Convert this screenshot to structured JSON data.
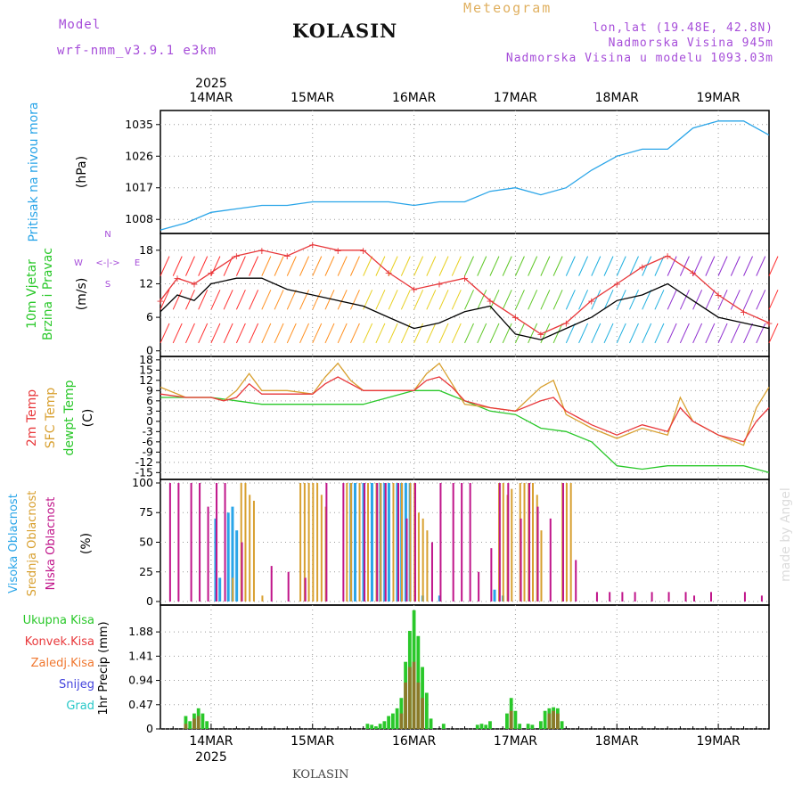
{
  "header": {
    "model_label": "Model",
    "model_name": "wrf-nmm_v3.9.1 e3km",
    "station": "KOLASIN",
    "product": "Meteogram",
    "coords": "lon,lat (19.48E, 42.8N)",
    "elevation": "Nadmorska Visina 945m",
    "model_elevation": "Nadmorska Visina u modelu 1093.03m",
    "footer_station": "KOLASIN",
    "credit": "made by Angel"
  },
  "colors": {
    "pressure": "#2aa5e8",
    "wind_speed": "#000000",
    "gust": "#e8383b",
    "temp2m": "#e8383b",
    "sfc": "#d8a030",
    "dewpoint": "#2ac82a",
    "high_cloud": "#2aa5e8",
    "mid_cloud": "#d8a030",
    "low_cloud": "#c0158a",
    "total_precip": "#2ac82a",
    "conv_precip": "#e8383b",
    "freezing": "#f07830",
    "snow": "#4444dd",
    "hail": "#28c8c8",
    "axis_label_purple": "#a64dd9"
  },
  "chart_data": {
    "type": "meteogram",
    "time_axis": {
      "year": "2025",
      "start_hour": -12,
      "end_hour": 132,
      "date_labels": [
        "14MAR",
        "15MAR",
        "16MAR",
        "17MAR",
        "18MAR",
        "19MAR"
      ],
      "date_hours": [
        0,
        24,
        48,
        72,
        96,
        120
      ]
    },
    "panels": [
      {
        "id": "pressure",
        "title": "Pritisak na nivou mora",
        "unit": "(hPa)",
        "ylim": [
          1004,
          1039
        ],
        "yticks": [
          "1035",
          "1026",
          "1017",
          "1008"
        ],
        "ytick_values": [
          1035,
          1026,
          1017,
          1008
        ],
        "series": [
          {
            "name": "Pritisak",
            "x": [
              -12,
              -6,
              0,
              6,
              12,
              18,
              24,
              30,
              36,
              42,
              48,
              54,
              60,
              66,
              72,
              78,
              84,
              90,
              96,
              102,
              108,
              114,
              120,
              126,
              132
            ],
            "y": [
              1005,
              1007,
              1010,
              1011,
              1012,
              1012,
              1013,
              1013,
              1013,
              1013,
              1012,
              1013,
              1013,
              1016,
              1017,
              1015,
              1017,
              1022,
              1026,
              1028,
              1028,
              1034,
              1036,
              1036,
              1032
            ]
          }
        ]
      },
      {
        "id": "wind",
        "title": "10m Vjetar",
        "title2": "Brzina i Pravac",
        "unit": "(m/s)",
        "compass": [
          "N",
          "E",
          "S",
          "W"
        ],
        "ylim": [
          -1,
          21
        ],
        "yticks": [
          "18",
          "12",
          "6",
          "0"
        ],
        "ytick_values": [
          18,
          12,
          6,
          0
        ],
        "series": [
          {
            "name": "Brzina",
            "x": [
              -12,
              -8,
              -4,
              0,
              6,
              12,
              18,
              24,
              30,
              36,
              42,
              48,
              54,
              60,
              66,
              72,
              78,
              84,
              90,
              96,
              102,
              108,
              114,
              120,
              126,
              132
            ],
            "y": [
              7,
              10,
              9,
              12,
              13,
              13,
              11,
              10,
              9,
              8,
              6,
              4,
              5,
              7,
              8,
              3,
              2,
              4,
              6,
              9,
              10,
              12,
              9,
              6,
              5,
              4
            ]
          },
          {
            "name": "Udari",
            "x": [
              -12,
              -8,
              -4,
              0,
              6,
              12,
              18,
              24,
              30,
              36,
              42,
              48,
              54,
              60,
              66,
              72,
              78,
              84,
              90,
              96,
              102,
              108,
              114,
              120,
              126,
              132
            ],
            "y": [
              9,
              13,
              12,
              14,
              17,
              18,
              17,
              19,
              18,
              18,
              14,
              11,
              12,
              13,
              9,
              6,
              3,
              5,
              9,
              12,
              15,
              17,
              14,
              10,
              7,
              5
            ]
          }
        ]
      },
      {
        "id": "temperature",
        "title": "2m Temp",
        "title2": "SFC Temp",
        "title3": "dewpt Temp",
        "unit": "(C)",
        "ylim": [
          -17,
          19
        ],
        "yticks": [
          "18",
          "15",
          "12",
          "9",
          "6",
          "3",
          "0",
          "-3",
          "-6",
          "-9",
          "-12",
          "-15"
        ],
        "ytick_values": [
          18,
          15,
          12,
          9,
          6,
          3,
          0,
          -3,
          -6,
          -9,
          -12,
          -15
        ],
        "series": [
          {
            "name": "2m Temp",
            "x": [
              -12,
              -6,
              0,
              3,
              6,
              9,
              12,
              18,
              24,
              27,
              30,
              33,
              36,
              42,
              48,
              51,
              54,
              57,
              60,
              66,
              72,
              78,
              81,
              84,
              87,
              90,
              96,
              102,
              108,
              111,
              114,
              120,
              126,
              129,
              132
            ],
            "y": [
              8,
              7,
              7,
              6,
              7,
              11,
              8,
              8,
              8,
              11,
              13,
              11,
              9,
              9,
              9,
              12,
              13,
              10,
              6,
              4,
              3,
              6,
              7,
              3,
              1,
              -1,
              -4,
              -1,
              -3,
              4,
              0,
              -4,
              -6,
              0,
              4
            ]
          },
          {
            "name": "SFC Temp",
            "x": [
              -12,
              -6,
              0,
              3,
              6,
              9,
              12,
              18,
              24,
              27,
              30,
              33,
              36,
              42,
              48,
              51,
              54,
              57,
              60,
              66,
              72,
              78,
              81,
              84,
              87,
              90,
              96,
              102,
              108,
              111,
              114,
              120,
              126,
              129,
              132
            ],
            "y": [
              10,
              7,
              7,
              6,
              9,
              14,
              9,
              9,
              8,
              13,
              17,
              12,
              9,
              9,
              9,
              14,
              17,
              11,
              5,
              4,
              3,
              10,
              12,
              2,
              0,
              -2,
              -5,
              -2,
              -4,
              7,
              0,
              -4,
              -7,
              4,
              10
            ]
          },
          {
            "name": "dewpt Temp",
            "x": [
              -12,
              -6,
              0,
              6,
              12,
              18,
              24,
              30,
              36,
              42,
              48,
              54,
              60,
              66,
              72,
              78,
              84,
              90,
              96,
              102,
              108,
              114,
              120,
              126,
              132
            ],
            "y": [
              7,
              7,
              7,
              6,
              5,
              5,
              5,
              5,
              5,
              7,
              9,
              9,
              6,
              3,
              2,
              -2,
              -3,
              -6,
              -13,
              -14,
              -13,
              -13,
              -13,
              -13,
              -15
            ]
          }
        ]
      },
      {
        "id": "clouds",
        "title": "Visoka Oblacnost",
        "title2": "Srednja Oblacnost",
        "title3": "Niska Oblacnost",
        "unit": "(%)",
        "ylim": [
          -3,
          103
        ],
        "yticks": [
          "100",
          "75",
          "50",
          "25",
          "0"
        ],
        "ytick_values": [
          100,
          75,
          50,
          25,
          0
        ],
        "series": [
          {
            "name": "Visoka",
            "x": [
              1,
              2,
              4,
              5,
              6,
              33,
              34,
              36,
              38,
              40,
              41,
              42,
              44,
              45,
              46,
              47,
              50,
              54,
              67,
              69
            ],
            "y": [
              70,
              20,
              75,
              80,
              60,
              100,
              100,
              100,
              100,
              100,
              100,
              100,
              100,
              100,
              100,
              100,
              5,
              5,
              10,
              5
            ]
          },
          {
            "name": "Srednja",
            "x": [
              5,
              7,
              8,
              9,
              10,
              12,
              21,
              22,
              23,
              24,
              25,
              26,
              27,
              32,
              33,
              35,
              37,
              39,
              40,
              43,
              45,
              47,
              48,
              49,
              50,
              51,
              68,
              69,
              70,
              71,
              73,
              74,
              75,
              76,
              77,
              78,
              83,
              84,
              85
            ],
            "y": [
              20,
              100,
              100,
              90,
              85,
              5,
              100,
              100,
              100,
              100,
              100,
              90,
              80,
              100,
              100,
              100,
              100,
              100,
              100,
              100,
              100,
              100,
              100,
              75,
              70,
              60,
              100,
              100,
              90,
              95,
              100,
              100,
              100,
              100,
              90,
              60,
              100,
              100,
              100
            ]
          },
          {
            "name": "Niska",
            "x": [
              -10,
              -8,
              -5,
              -3,
              -1,
              1,
              3,
              7,
              14,
              18,
              22,
              27,
              31,
              36,
              39,
              41,
              44,
              46,
              48,
              52,
              54,
              57,
              59,
              61,
              63,
              66,
              68,
              70,
              73,
              75,
              77,
              80,
              83,
              86,
              91,
              94,
              97,
              100,
              104,
              108,
              112,
              114,
              118,
              126,
              130
            ],
            "y": [
              100,
              100,
              100,
              100,
              80,
              100,
              100,
              50,
              30,
              25,
              20,
              100,
              100,
              100,
              100,
              100,
              100,
              70,
              100,
              50,
              100,
              100,
              100,
              100,
              25,
              45,
              100,
              100,
              70,
              100,
              80,
              70,
              100,
              35,
              8,
              8,
              8,
              8,
              8,
              8,
              8,
              5,
              8,
              8,
              5
            ]
          }
        ]
      },
      {
        "id": "precip",
        "title": "1hr Precip",
        "unit": "(mm)",
        "legend": [
          "Ukupna Kisa",
          "Konvek.Kisa",
          "Zaledj.Kisa",
          "Snijeg",
          "Grad"
        ],
        "ylim": [
          0,
          2.4
        ],
        "yticks": [
          "1.88",
          "1.41",
          "0.94",
          "0.47",
          "0"
        ],
        "ytick_values": [
          1.88,
          1.41,
          0.94,
          0.47,
          0
        ],
        "series": [
          {
            "name": "Ukupna Kisa",
            "x": [
              -6,
              -5,
              -4,
              -3,
              -2,
              -1,
              37,
              38,
              39,
              40,
              41,
              42,
              43,
              44,
              45,
              46,
              47,
              48,
              49,
              50,
              51,
              52,
              55,
              63,
              64,
              65,
              66,
              70,
              71,
              72,
              73,
              75,
              76,
              78,
              79,
              80,
              81,
              82,
              83
            ],
            "y": [
              0.25,
              0.15,
              0.3,
              0.4,
              0.3,
              0.15,
              0.1,
              0.08,
              0.05,
              0.1,
              0.15,
              0.25,
              0.3,
              0.4,
              0.6,
              1.3,
              1.9,
              2.3,
              1.8,
              1.2,
              0.7,
              0.2,
              0.1,
              0.08,
              0.1,
              0.08,
              0.15,
              0.3,
              0.6,
              0.35,
              0.1,
              0.1,
              0.08,
              0.15,
              0.35,
              0.4,
              0.42,
              0.4,
              0.15
            ]
          },
          {
            "name": "Konvek.Kisa",
            "x": [
              -6,
              -4,
              -3,
              45,
              46,
              47,
              48,
              49,
              50,
              71,
              80,
              81,
              82
            ],
            "y": [
              0.1,
              0.2,
              0.25,
              0.3,
              0.9,
              1.2,
              1.3,
              0.9,
              0.6,
              0.35,
              0.3,
              0.35,
              0.3
            ]
          }
        ]
      }
    ]
  }
}
